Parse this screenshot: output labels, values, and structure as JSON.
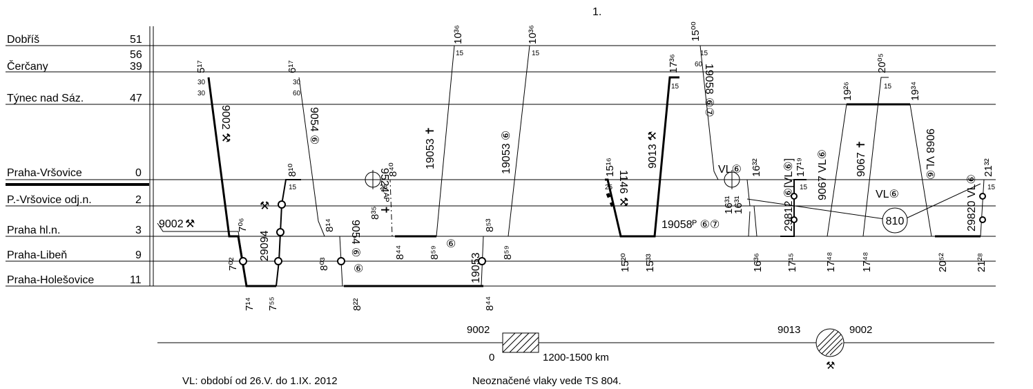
{
  "page_number": "1.",
  "stations": [
    {
      "name": "Dobříš",
      "km": "51"
    },
    {
      "name": "",
      "km": "56"
    },
    {
      "name": "Čerčany",
      "km": "39"
    },
    {
      "name": "Týnec nad Sáz.",
      "km": "47"
    },
    {
      "name": "Praha-Vršovice",
      "km": "0"
    },
    {
      "name": "P.-Vršovice odj.n.",
      "km": "2"
    },
    {
      "name": "Praha hl.n.",
      "km": "3"
    },
    {
      "name": "Praha-Libeň",
      "km": "9"
    },
    {
      "name": "Praha-Holešovice",
      "km": "11"
    }
  ],
  "train_labels": {
    "t9002": "9002 ⚒",
    "t9002_left": "9002",
    "t9054": "9054 ⑥",
    "t29094": "29094",
    "t9524": "9524ᴬᴾ ✝",
    "t19053a": "19053 ✝",
    "t19053b": "19053 ⑥",
    "t19053c": "19053",
    "t1146": "1146 ⚒",
    "t9013": "9013 ⚒",
    "t19058": "19058 ⑥⑦",
    "t19058p": "19058ᴾ ⑥⑦",
    "t29812": "29812 ⑥[VL⑥]",
    "t9067a": "9067 VL⑥",
    "t9067b": "9067 ✝",
    "t9068": "9068 VL⑥",
    "t29820": "29820 VL⑥",
    "vl1": "VL⑥",
    "vl2": "VL⑥",
    "circle810": "810",
    "circle6": "⑥"
  },
  "times": {
    "a1": "5¹⁷",
    "a2": "6¹⁷",
    "a3": "10³⁶",
    "a4": "10³⁶",
    "a5": "17³⁶",
    "a6": "15⁰⁰",
    "a7": "20⁰⁵",
    "a8": "19²⁶",
    "a9": "19³⁴",
    "b1": "8¹⁰",
    "b2": "8⁴⁰",
    "b3": "15¹⁶",
    "b4": "16³²",
    "b5": "17¹⁹",
    "b6": "21³²",
    "c1": "7⁰⁶",
    "c2": "8¹⁴",
    "c3": "8³⁵",
    "c4": "8⁵³",
    "c5": "16³¹",
    "c6": "16³¹",
    "d1": "7⁰²",
    "d2": "8⁰³",
    "d3": "8⁴⁴",
    "d4": "8⁵⁹",
    "d5": "8⁵⁹",
    "d6": "15²⁰",
    "d7": "15³³",
    "d8": "16³⁶",
    "d9": "17¹⁵",
    "d10": "17⁴⁸",
    "d11": "17⁴⁸",
    "d12": "20⁵²",
    "d13": "21²⁸",
    "e1": "7¹⁴",
    "e2": "7⁵⁵",
    "e3": "8²²",
    "e4": "8⁴⁴"
  },
  "small_times": [
    "30",
    "30",
    "30",
    "60",
    "15",
    "15",
    "15",
    "15",
    "60",
    "15",
    "15",
    "25",
    "25",
    "15",
    "15"
  ],
  "legend": {
    "rect_train": "9002",
    "zero": "0",
    "range": "1200-1500  km",
    "circle_left": "9013",
    "circle_right": "9002",
    "hammers": "⚒"
  },
  "footnotes": {
    "vl": "VL: období od 26.V. do 1.IX. 2012",
    "ts": "Neoznačené vlaky vede TS 804."
  }
}
